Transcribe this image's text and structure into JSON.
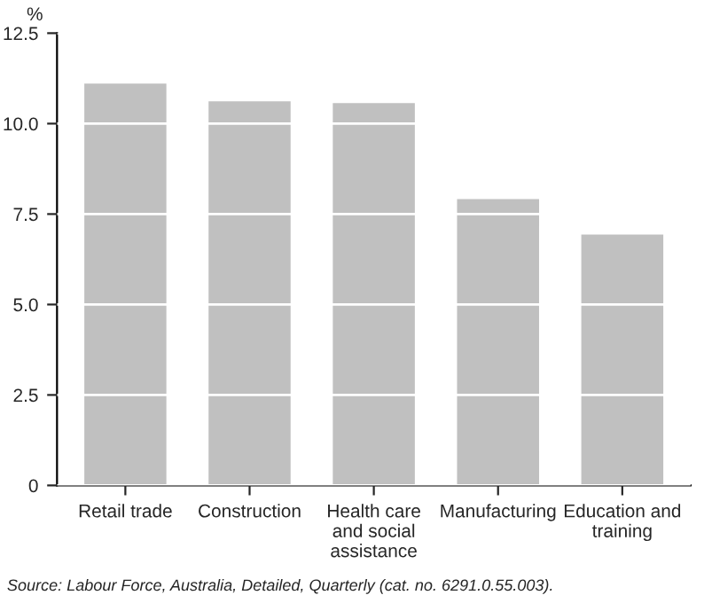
{
  "chart_data": {
    "type": "bar",
    "ylabel": "%",
    "categories": [
      "Retail trade",
      "Construction",
      "Health care and social assistance",
      "Manufacturing",
      "Education and training"
    ],
    "values": [
      11.14,
      10.65,
      10.6,
      7.95,
      6.97
    ],
    "color": "#c0c0c0",
    "ylim": [
      0,
      12.5
    ],
    "yticks": [
      {
        "value": 0,
        "label": "0"
      },
      {
        "value": 2.5,
        "label": "2.5"
      },
      {
        "value": 5,
        "label": "5.0"
      },
      {
        "value": 7.5,
        "label": "7.5"
      },
      {
        "value": 10,
        "label": "10.0"
      },
      {
        "value": 12.5,
        "label": "12.5"
      }
    ],
    "grid": "y",
    "annotations": [
      "Source: Labour Force, Australia, Detailed, Quarterly (cat. no. 6291.0.55.003)."
    ]
  }
}
